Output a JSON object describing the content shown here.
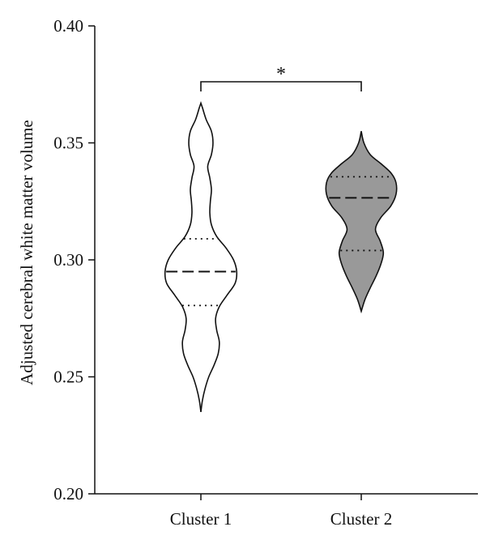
{
  "chart_data": {
    "type": "violin",
    "title": "",
    "xlabel": "",
    "ylabel": "Adjusted cerebral white matter volume",
    "ylim": [
      0.2,
      0.4
    ],
    "y_ticks": [
      0.2,
      0.25,
      0.3,
      0.35,
      0.4
    ],
    "y_tick_labels": [
      "0.20",
      "0.25",
      "0.30",
      "0.35",
      "0.40"
    ],
    "grid": false,
    "categories": [
      "Cluster 1",
      "Cluster 2"
    ],
    "series": [
      {
        "category": "Cluster 1",
        "fill": "#ffffff",
        "median": 0.295,
        "q1": 0.2805,
        "q3": 0.309,
        "min": 0.235,
        "max": 0.367,
        "density": [
          [
            0.235,
            0.0
          ],
          [
            0.24,
            0.03
          ],
          [
            0.245,
            0.08
          ],
          [
            0.25,
            0.15
          ],
          [
            0.255,
            0.25
          ],
          [
            0.26,
            0.33
          ],
          [
            0.265,
            0.35
          ],
          [
            0.27,
            0.3
          ],
          [
            0.275,
            0.28
          ],
          [
            0.28,
            0.35
          ],
          [
            0.285,
            0.5
          ],
          [
            0.29,
            0.65
          ],
          [
            0.295,
            0.68
          ],
          [
            0.3,
            0.62
          ],
          [
            0.305,
            0.48
          ],
          [
            0.31,
            0.3
          ],
          [
            0.315,
            0.2
          ],
          [
            0.32,
            0.17
          ],
          [
            0.325,
            0.18
          ],
          [
            0.33,
            0.2
          ],
          [
            0.335,
            0.17
          ],
          [
            0.34,
            0.13
          ],
          [
            0.345,
            0.2
          ],
          [
            0.35,
            0.23
          ],
          [
            0.355,
            0.2
          ],
          [
            0.36,
            0.1
          ],
          [
            0.365,
            0.03
          ],
          [
            0.367,
            0.0
          ]
        ]
      },
      {
        "category": "Cluster 2",
        "fill": "#999999",
        "median": 0.3265,
        "q1": 0.304,
        "q3": 0.3355,
        "min": 0.278,
        "max": 0.355,
        "density": [
          [
            0.278,
            0.0
          ],
          [
            0.283,
            0.07
          ],
          [
            0.288,
            0.17
          ],
          [
            0.293,
            0.28
          ],
          [
            0.298,
            0.37
          ],
          [
            0.303,
            0.42
          ],
          [
            0.308,
            0.36
          ],
          [
            0.313,
            0.27
          ],
          [
            0.318,
            0.37
          ],
          [
            0.323,
            0.56
          ],
          [
            0.328,
            0.66
          ],
          [
            0.333,
            0.66
          ],
          [
            0.337,
            0.57
          ],
          [
            0.341,
            0.38
          ],
          [
            0.345,
            0.17
          ],
          [
            0.35,
            0.05
          ],
          [
            0.355,
            0.0
          ]
        ]
      }
    ],
    "significance": {
      "label": "*",
      "between": [
        "Cluster 1",
        "Cluster 2"
      ]
    }
  }
}
